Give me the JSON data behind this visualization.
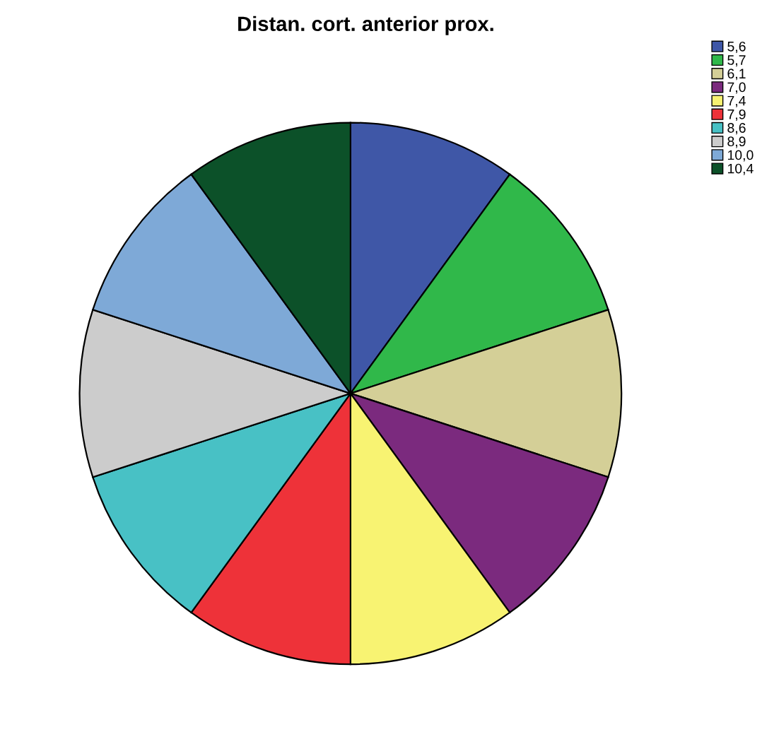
{
  "chart_data": {
    "type": "pie",
    "title": "Distan. cort. anterior prox.",
    "categories": [
      "5,6",
      "5,7",
      "6,1",
      "7,0",
      "7,4",
      "7,9",
      "8,6",
      "8,9",
      "10,0",
      "10,4"
    ],
    "values": [
      10,
      10,
      10,
      10,
      10,
      10,
      10,
      10,
      10,
      10
    ],
    "colors": [
      "#3f57a7",
      "#30b84a",
      "#d4cf97",
      "#7b2a7e",
      "#f8f372",
      "#ee3239",
      "#48c1c5",
      "#cccccc",
      "#7ea9d7",
      "#0c5129"
    ],
    "legend": "top right"
  }
}
